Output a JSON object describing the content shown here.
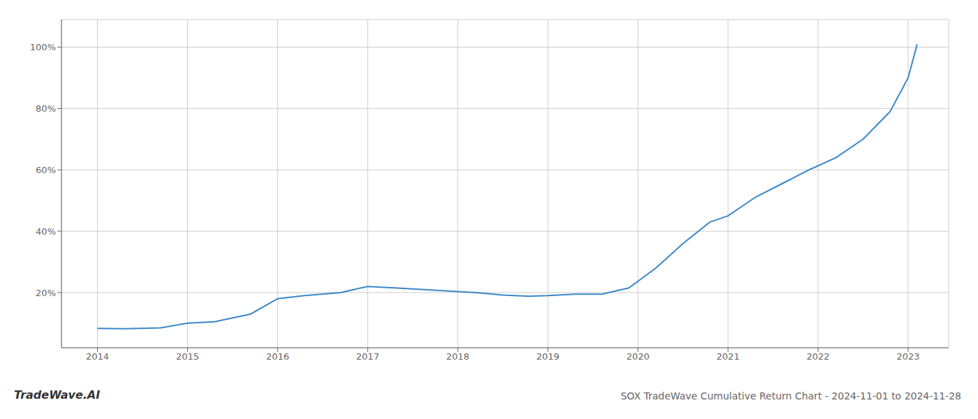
{
  "chart_data": {
    "type": "line",
    "title": "SOX TradeWave Cumulative Return Chart - 2024-11-01 to 2024-11-28",
    "annotations": [
      "TradeWave.AI"
    ],
    "x": [
      2014.0,
      2014.3,
      2014.7,
      2015.0,
      2015.3,
      2015.7,
      2016.0,
      2016.3,
      2016.7,
      2017.0,
      2017.3,
      2017.6,
      2017.9,
      2018.2,
      2018.5,
      2018.8,
      2019.0,
      2019.3,
      2019.6,
      2019.9,
      2020.2,
      2020.5,
      2020.8,
      2021.0,
      2021.3,
      2021.6,
      2021.9,
      2022.2,
      2022.5,
      2022.8,
      2023.0,
      2023.1
    ],
    "values": [
      0.083,
      0.082,
      0.085,
      0.1,
      0.105,
      0.13,
      0.18,
      0.19,
      0.2,
      0.22,
      0.215,
      0.21,
      0.205,
      0.2,
      0.192,
      0.188,
      0.19,
      0.195,
      0.195,
      0.215,
      0.28,
      0.36,
      0.43,
      0.45,
      0.51,
      0.555,
      0.6,
      0.64,
      0.7,
      0.79,
      0.9,
      1.01
    ],
    "color": "#3a87c8",
    "xlim": [
      2013.6,
      2023.45
    ],
    "xticks": [
      2014,
      2015,
      2016,
      2017,
      2018,
      2019,
      2020,
      2021,
      2022,
      2023
    ],
    "ylim": [
      0.02,
      1.09
    ],
    "yticks": [
      {
        "value": 0.2,
        "label": "20%"
      },
      {
        "value": 0.4,
        "label": "40%"
      },
      {
        "value": 0.6,
        "label": "60%"
      },
      {
        "value": 0.8,
        "label": "80%"
      },
      {
        "value": 1.0,
        "label": "100%"
      }
    ],
    "grid": true
  }
}
